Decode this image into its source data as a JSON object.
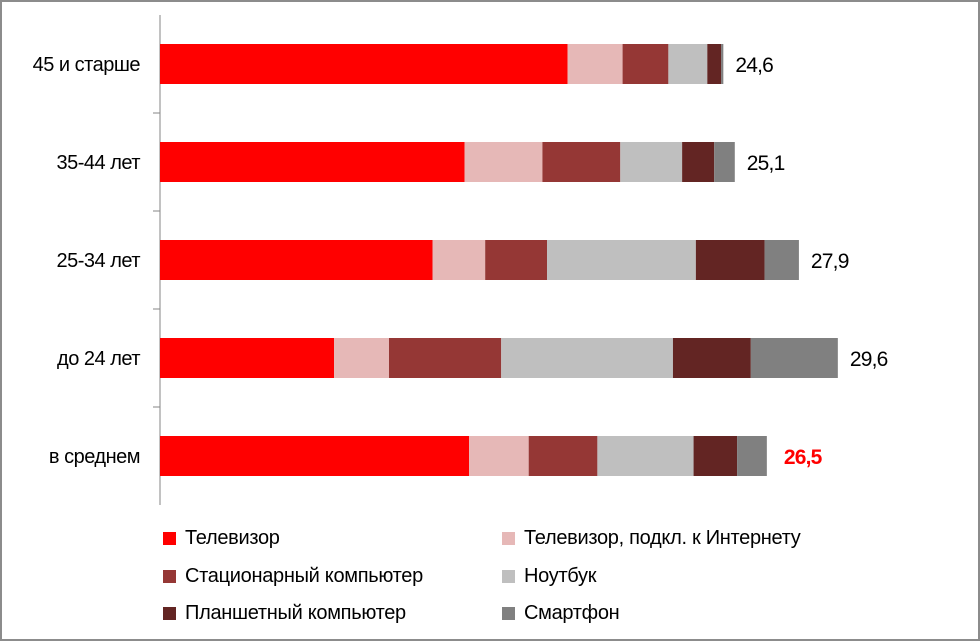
{
  "chart_data": {
    "type": "bar",
    "orientation": "horizontal",
    "stacked": true,
    "categories": [
      "45 и старше",
      "35-44 лет",
      "25-34 лет",
      "до 24 лет",
      "в среднем"
    ],
    "series": [
      {
        "name": "Телевизор",
        "color": "#ff0000",
        "values": [
          17.8,
          13.3,
          11.9,
          7.6,
          13.5
        ]
      },
      {
        "name": "Телевизор, подкл. к Интернету",
        "color": "#e6b8b7",
        "values": [
          2.4,
          3.4,
          2.3,
          2.4,
          2.6
        ]
      },
      {
        "name": "Стационарный компьютер",
        "color": "#953735",
        "values": [
          2.0,
          3.4,
          2.7,
          4.9,
          3.0
        ]
      },
      {
        "name": "Ноутбук",
        "color": "#bfbfbf",
        "values": [
          1.7,
          2.7,
          6.5,
          7.5,
          4.2
        ]
      },
      {
        "name": "Планшетный компьютер",
        "color": "#632523",
        "values": [
          0.6,
          1.4,
          3.0,
          3.4,
          1.9
        ]
      },
      {
        "name": "Смартфон",
        "color": "#808080",
        "values": [
          0.1,
          0.9,
          1.5,
          3.8,
          1.3
        ]
      }
    ],
    "totals": [
      "24,6",
      "25,1",
      "27,9",
      "29,6",
      "26,5"
    ],
    "total_values": [
      24.6,
      25.1,
      27.9,
      29.6,
      26.5
    ],
    "highlight_total_color": "#ff0000",
    "xlim": [
      0,
      35
    ],
    "grid": false,
    "legend_position": "bottom",
    "title": "",
    "xlabel": "",
    "ylabel": ""
  }
}
